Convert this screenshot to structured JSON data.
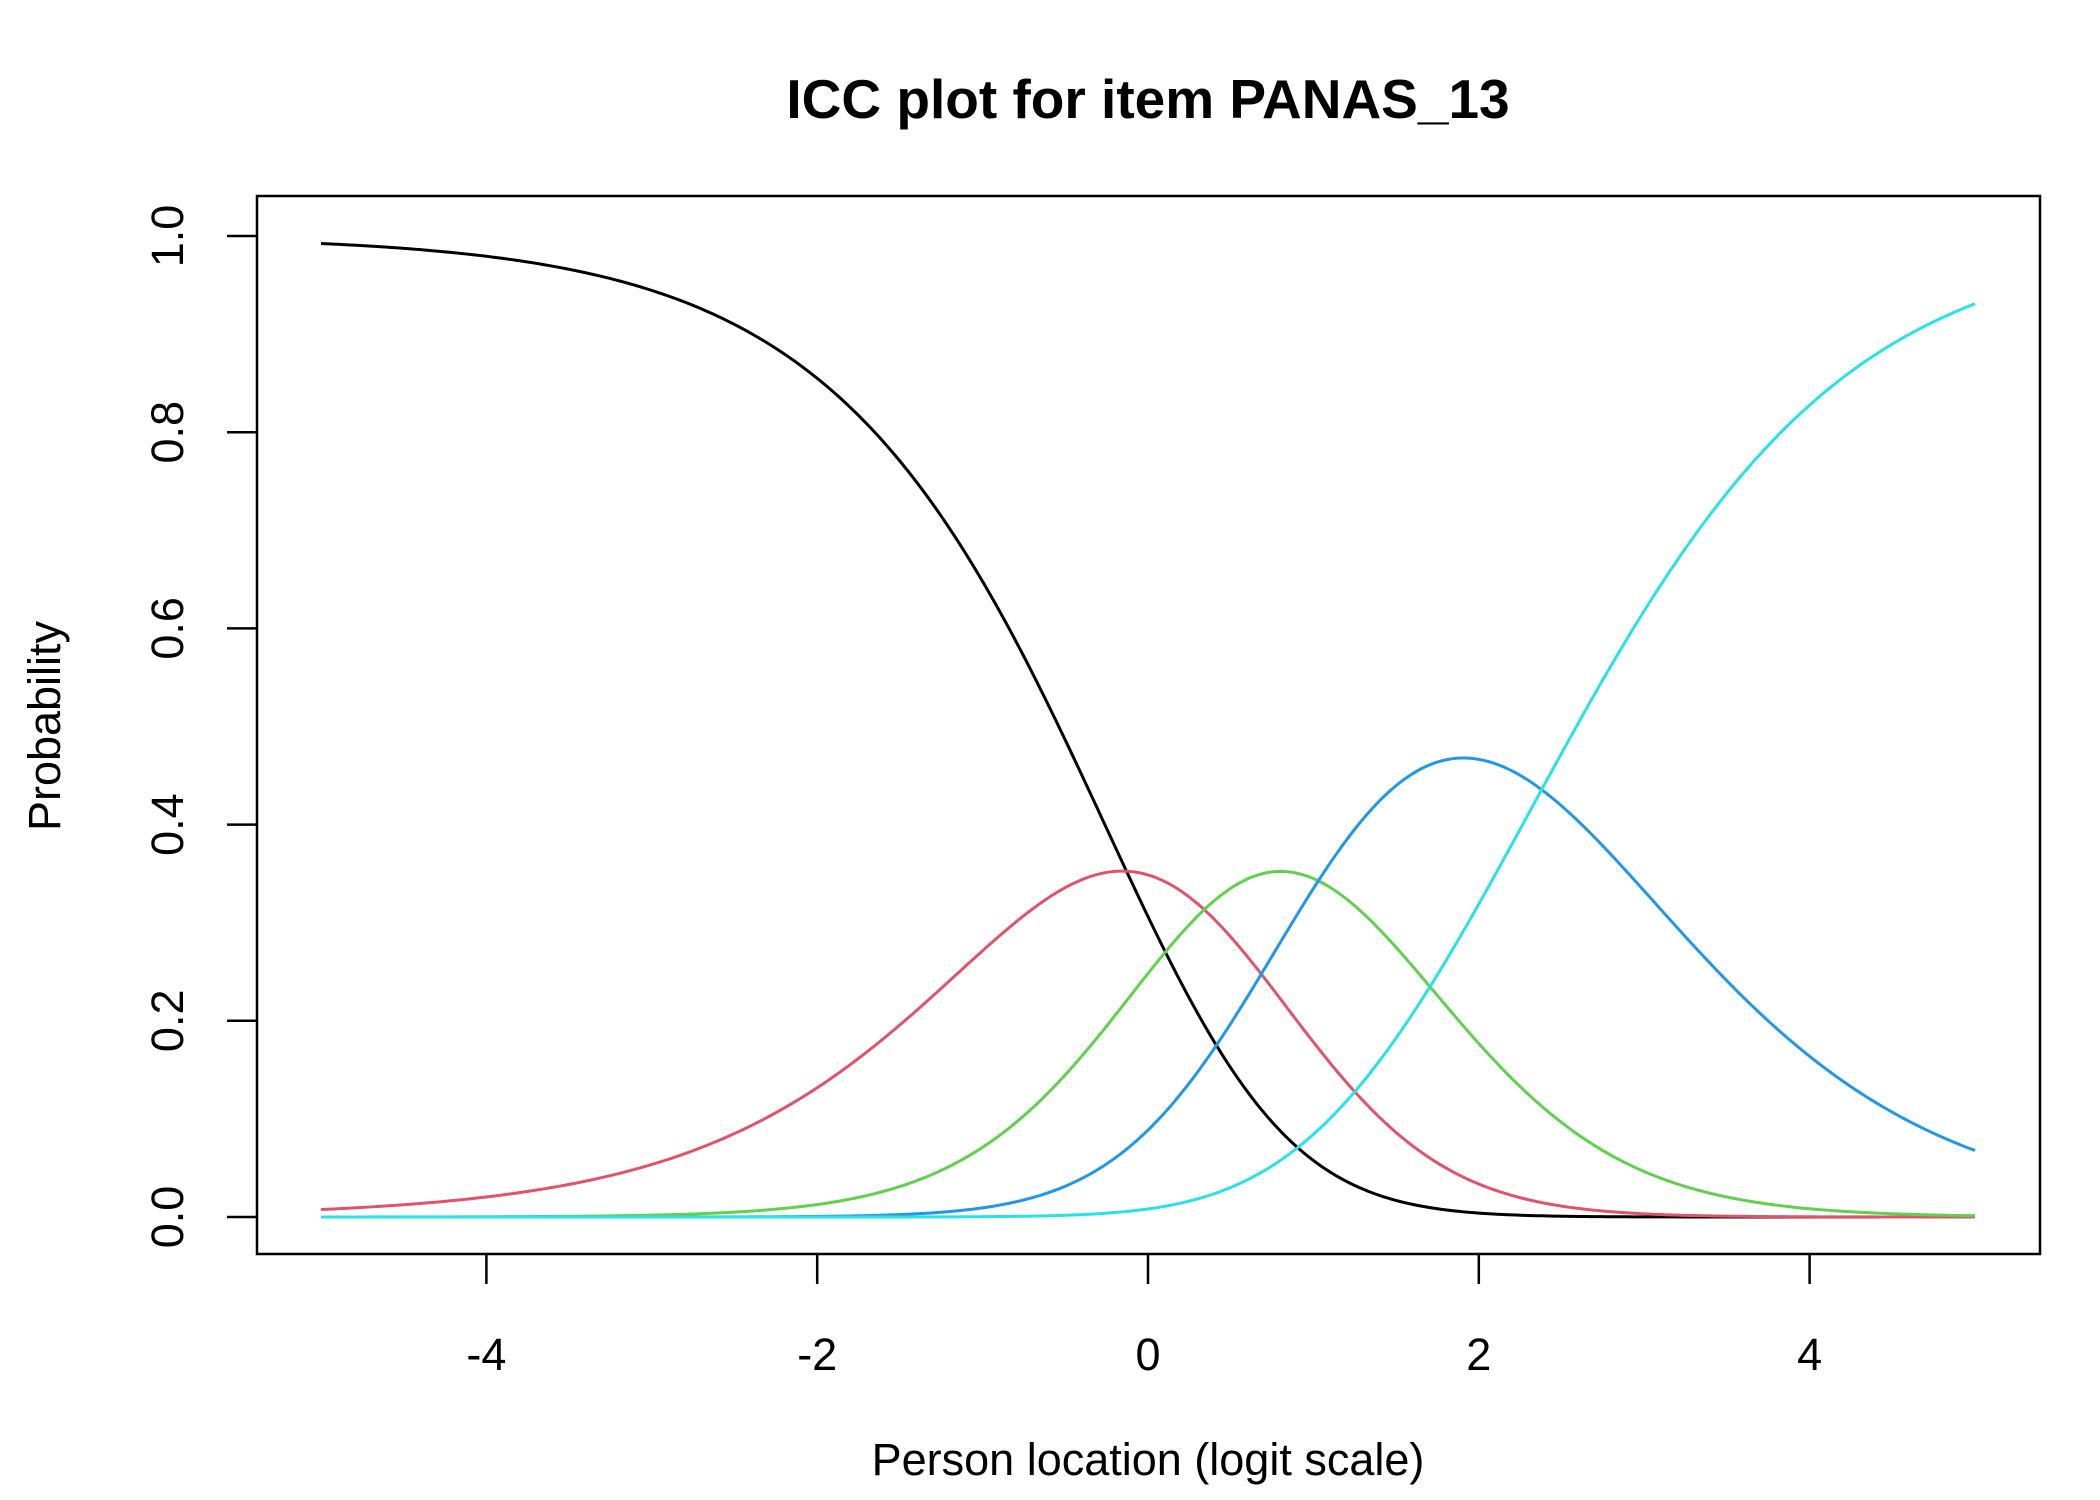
{
  "chart_data": {
    "type": "line",
    "title": "ICC plot for item PANAS_13",
    "xlabel": "Person location (logit scale)",
    "ylabel": "Probability",
    "xlim": [
      -5,
      5
    ],
    "ylim": [
      0,
      1
    ],
    "x_ticks": [
      -4,
      -2,
      0,
      2,
      4
    ],
    "y_ticks": [
      0.0,
      0.2,
      0.4,
      0.6,
      0.8,
      1.0
    ],
    "y_tick_labels": [
      "0.0",
      "0.2",
      "0.4",
      "0.6",
      "0.8",
      "1.0"
    ],
    "grid": false,
    "legend": "none",
    "model": "partial credit (Rasch) category response curves",
    "thresholds": [
      -0.13,
      0.34,
      1.03,
      2.38
    ],
    "x": [
      -5,
      -4.5,
      -4,
      -3.5,
      -3,
      -2.5,
      -2,
      -1.5,
      -1,
      -0.5,
      0,
      0.5,
      1,
      1.5,
      2,
      2.5,
      3,
      3.5,
      4,
      4.5,
      5
    ],
    "series": [
      {
        "color": "#000000",
        "values": [
          0.993,
          0.989,
          0.982,
          0.97,
          0.95,
          0.916,
          0.86,
          0.771,
          0.636,
          0.462,
          0.282,
          0.138,
          0.055,
          0.019,
          0.006,
          0.002,
          0.001,
          0.0,
          0.0,
          0.0,
          0.0
        ]
      },
      {
        "color": "#DF536B",
        "values": [
          0.006,
          0.01,
          0.016,
          0.027,
          0.044,
          0.071,
          0.109,
          0.161,
          0.221,
          0.283,
          0.305,
          0.254,
          0.167,
          0.093,
          0.044,
          0.018,
          0.007,
          0.002,
          0.001,
          0.0,
          0.0
        ]
      },
      {
        "color": "#61D04F",
        "values": [
          0.0,
          0.0,
          0.001,
          0.002,
          0.004,
          0.008,
          0.017,
          0.036,
          0.073,
          0.134,
          0.233,
          0.32,
          0.337,
          0.294,
          0.202,
          0.131,
          0.073,
          0.035,
          0.016,
          0.007,
          0.003
        ]
      },
      {
        "color": "#2297E6",
        "values": [
          0.0,
          0.0,
          0.0,
          0.0,
          0.0,
          0.001,
          0.002,
          0.006,
          0.014,
          0.039,
          0.097,
          0.213,
          0.339,
          0.406,
          0.412,
          0.358,
          0.273,
          0.193,
          0.129,
          0.082,
          0.048
        ]
      },
      {
        "color": "#28E2E5",
        "values": [
          0.0,
          0.0,
          0.0,
          0.0,
          0.0,
          0.0,
          0.0,
          0.0,
          0.001,
          0.004,
          0.012,
          0.035,
          0.082,
          0.177,
          0.346,
          0.516,
          0.664,
          0.778,
          0.855,
          0.911,
          0.949
        ]
      }
    ]
  }
}
